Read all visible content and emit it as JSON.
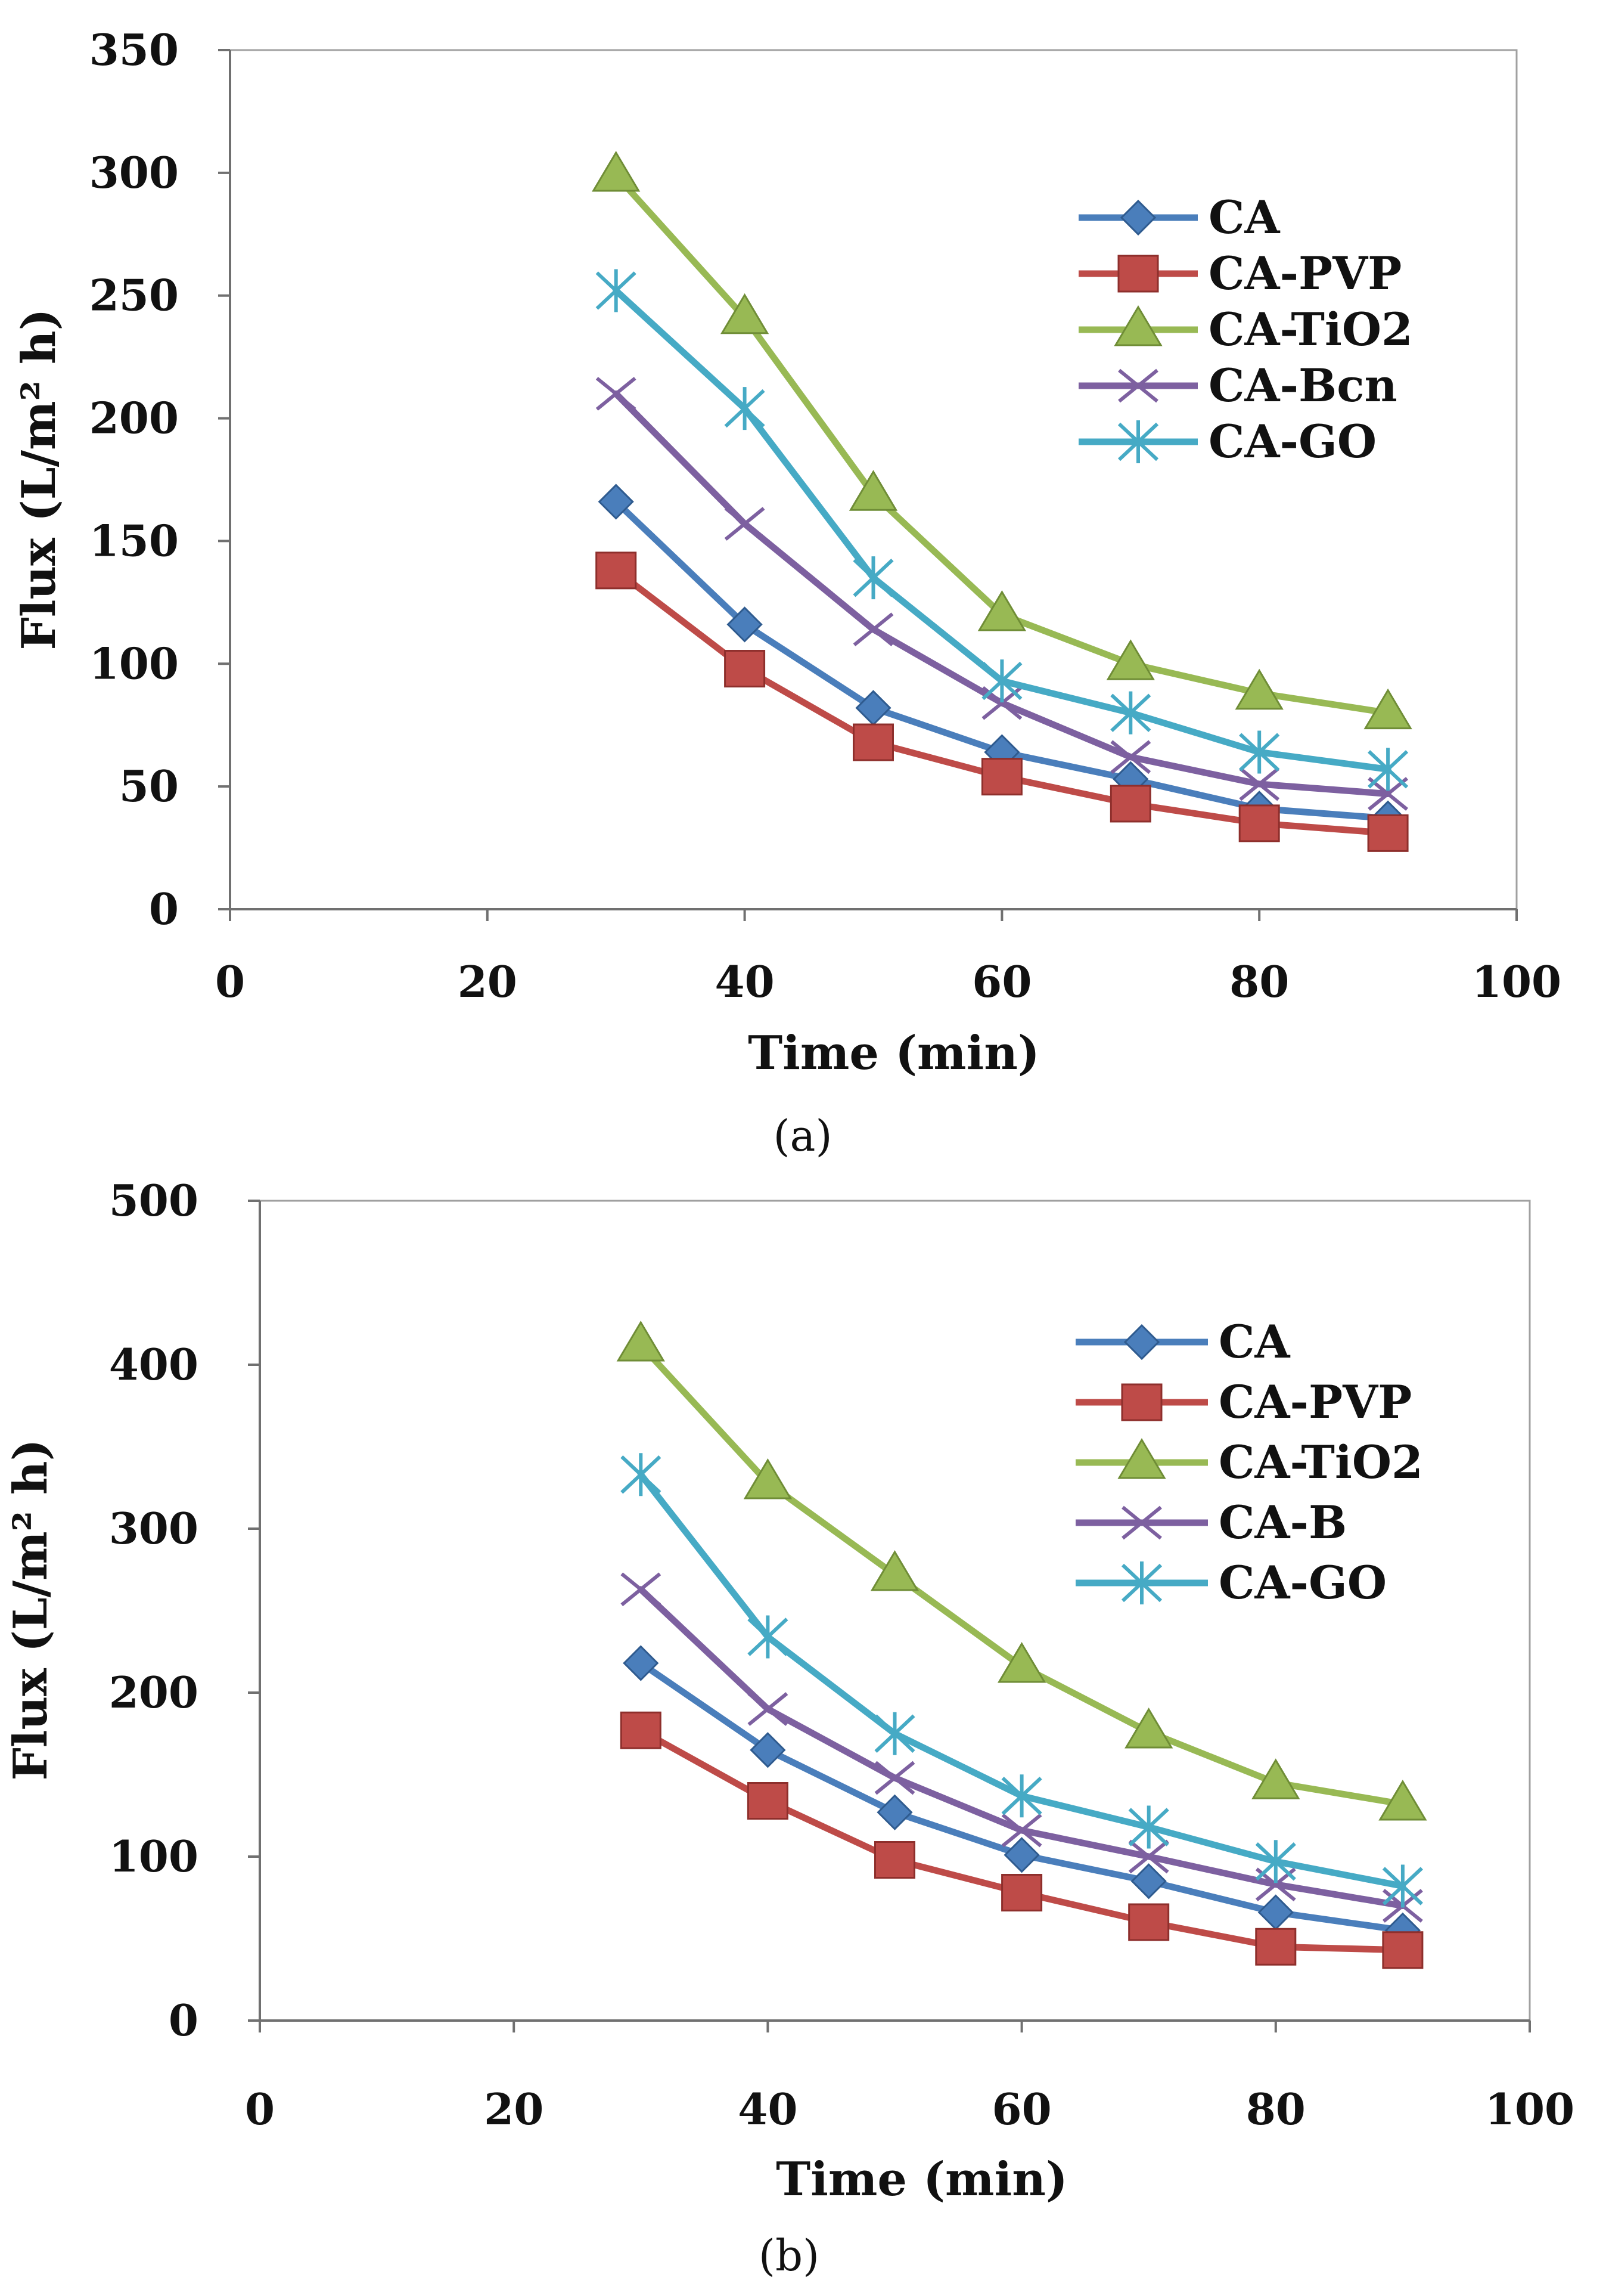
{
  "chart_data": [
    {
      "type": "line",
      "panel_label": "(a)",
      "title": "",
      "xlabel": "Time (min)",
      "ylabel": "Flux (L/m² h)",
      "xlim": [
        0,
        100
      ],
      "ylim": [
        0,
        350
      ],
      "xticks": [
        "0",
        "20",
        "40",
        "60",
        "80",
        "100"
      ],
      "yticks": [
        "0",
        "50",
        "100",
        "150",
        "200",
        "250",
        "300",
        "350"
      ],
      "grid": false,
      "legend_position": "top-right",
      "x": [
        30,
        40,
        50,
        60,
        70,
        80,
        90
      ],
      "series": [
        {
          "name": "CA",
          "marker": "diamond",
          "color": "#4a7ebb",
          "values": [
            166,
            116,
            82,
            64,
            53,
            41,
            37
          ]
        },
        {
          "name": "CA-PVP",
          "marker": "square",
          "color": "#be4b48",
          "values": [
            138,
            98,
            68,
            54,
            43,
            35,
            31
          ]
        },
        {
          "name": "CA-TiO2",
          "marker": "triangle",
          "color": "#98b954",
          "values": [
            299,
            241,
            169,
            120,
            100,
            88,
            80
          ]
        },
        {
          "name": "CA-Bcn",
          "marker": "x",
          "color": "#7d60a0",
          "values": [
            210,
            157,
            114,
            84,
            62,
            51,
            47
          ]
        },
        {
          "name": "CA-GO",
          "marker": "star",
          "color": "#46aac5",
          "values": [
            252,
            204,
            135,
            93,
            80,
            64,
            57
          ]
        }
      ]
    },
    {
      "type": "line",
      "panel_label": "(b)",
      "title": "",
      "xlabel": "Time (min)",
      "ylabel": "Flux (L/m² h)",
      "xlim": [
        0,
        100
      ],
      "ylim": [
        0,
        500
      ],
      "xticks": [
        "0",
        "20",
        "40",
        "60",
        "80",
        "100"
      ],
      "yticks": [
        "0",
        "100",
        "200",
        "300",
        "400",
        "500"
      ],
      "grid": false,
      "legend_position": "top-right",
      "x": [
        30,
        40,
        50,
        60,
        70,
        80,
        90
      ],
      "series": [
        {
          "name": "CA",
          "marker": "diamond",
          "color": "#4a7ebb",
          "values": [
            218,
            165,
            127,
            101,
            85,
            66,
            55
          ]
        },
        {
          "name": "CA-PVP",
          "marker": "square",
          "color": "#be4b48",
          "values": [
            177,
            134,
            98,
            78,
            60,
            45,
            43
          ]
        },
        {
          "name": "CA-TiO2",
          "marker": "triangle",
          "color": "#98b954",
          "values": [
            412,
            328,
            272,
            216,
            176,
            145,
            132
          ]
        },
        {
          "name": "CA-B",
          "marker": "x",
          "color": "#7d60a0",
          "values": [
            263,
            190,
            148,
            116,
            100,
            83,
            70
          ]
        },
        {
          "name": "CA-GO",
          "marker": "star",
          "color": "#46aac5",
          "values": [
            333,
            234,
            175,
            137,
            118,
            97,
            82
          ]
        }
      ]
    }
  ]
}
